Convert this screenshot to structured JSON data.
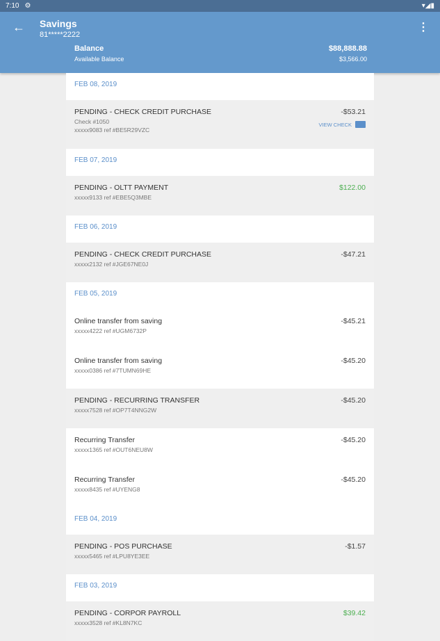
{
  "status": {
    "time": "7:10"
  },
  "header": {
    "title": "Savings",
    "account": "81*****2222",
    "balance_label": "Balance",
    "available_label": "Available Balance",
    "balance": "$88,888.88",
    "available": "$3,566.00"
  },
  "view_check_label": "VIEW CHECK",
  "colors": {
    "app_bar": "#6499cc",
    "status_bar": "#4b6e94",
    "date": "#5b8fca",
    "credit": "#4caf50"
  },
  "entries": [
    {
      "type": "date",
      "label": "FEB 08, 2019"
    },
    {
      "type": "tx",
      "pending": true,
      "desc": "PENDING - CHECK CREDIT PURCHASE",
      "check": "Check #1050",
      "ref": "xxxxx9083 ref #BE5R29VZC",
      "amount": "-$53.21",
      "view_check": true
    },
    {
      "type": "date",
      "label": "FEB 07, 2019"
    },
    {
      "type": "tx",
      "pending": true,
      "desc": "PENDING - OLTT PAYMENT",
      "ref": "xxxxx9133 ref #EBE5Q3MBE",
      "amount": "$122.00",
      "credit": true
    },
    {
      "type": "date",
      "label": "FEB 06, 2019"
    },
    {
      "type": "tx",
      "pending": true,
      "desc": "PENDING - CHECK CREDIT PURCHASE",
      "ref": "xxxxx2132 ref #JGE67NE0J",
      "amount": "-$47.21"
    },
    {
      "type": "date",
      "label": "FEB 05, 2019"
    },
    {
      "type": "tx",
      "pending": false,
      "desc": "Online transfer from saving",
      "ref": "xxxxx4222 ref #UGM6732P",
      "amount": "-$45.21"
    },
    {
      "type": "tx",
      "pending": false,
      "desc": "Online transfer from saving",
      "ref": "xxxxx0386 ref #7TUMN69HE",
      "amount": "-$45.20"
    },
    {
      "type": "tx",
      "pending": true,
      "desc": "PENDING - RECURRING TRANSFER",
      "ref": "xxxxx7528 ref #OP7T4NNG2W",
      "amount": "-$45.20"
    },
    {
      "type": "tx",
      "pending": false,
      "desc": "Recurring Transfer",
      "ref": "xxxxx1365 ref #OUT6NEU8W",
      "amount": "-$45.20"
    },
    {
      "type": "tx",
      "pending": false,
      "desc": "Recurring Transfer",
      "ref": "xxxxx8435 ref #UYENG8",
      "amount": "-$45.20"
    },
    {
      "type": "date",
      "label": "FEB 04, 2019"
    },
    {
      "type": "tx",
      "pending": true,
      "desc": "PENDING - POS PURCHASE",
      "ref": "xxxxx5465 ref #LPU8YE3EE",
      "amount": "-$1.57"
    },
    {
      "type": "date",
      "label": "FEB 03, 2019"
    },
    {
      "type": "tx",
      "pending": true,
      "desc": "PENDING - CORPOR PAYROLL",
      "ref": "xxxxx3528 ref #KL8N7KC",
      "amount": "$39.42",
      "credit": true
    }
  ]
}
